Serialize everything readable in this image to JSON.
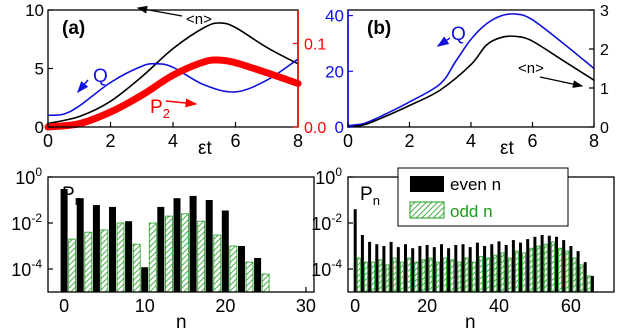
{
  "colors": {
    "black": "#000000",
    "blue": "#1010e0",
    "red": "#ff0000",
    "green": "#1a9a1a",
    "hatch_bg": "#ffffff"
  },
  "chart_data": [
    {
      "panel": "a",
      "type": "line",
      "panel_label": "(a)",
      "xlabel": "εt",
      "xlim": [
        0,
        8
      ],
      "x_ticks": [
        "0",
        "2",
        "4",
        "6",
        "8"
      ],
      "left_axis": {
        "ylim": [
          0,
          10
        ],
        "ticks": [
          "0",
          "5",
          "10"
        ]
      },
      "right_axis": {
        "ylim": [
          0,
          0.14
        ],
        "ticks": [
          "0.0",
          "0.1"
        ],
        "color": "#ff0000"
      },
      "annotations": {
        "n_mean": "<n>",
        "Q": "Q",
        "P2": "P",
        "P2_sub": "2"
      },
      "series": [
        {
          "key": "n_mean",
          "axis": "left",
          "color": "#000000",
          "x": [
            0,
            1,
            2,
            3,
            4,
            5,
            5.5,
            6,
            7,
            8
          ],
          "y": [
            0.3,
            0.9,
            2.2,
            4.3,
            6.7,
            8.5,
            8.9,
            8.5,
            6.8,
            5.4
          ]
        },
        {
          "key": "Q",
          "axis": "left",
          "color": "#1010e0",
          "x": [
            0,
            0.5,
            1,
            2,
            3,
            3.5,
            4,
            5,
            6,
            7,
            8
          ],
          "y": [
            1.0,
            1.1,
            1.8,
            3.8,
            5.2,
            5.4,
            5.1,
            3.6,
            3.0,
            4.0,
            5.8
          ]
        },
        {
          "key": "P2",
          "axis": "right",
          "color": "#ff0000",
          "thick": true,
          "x": [
            0,
            1,
            2,
            3,
            4,
            5,
            5.5,
            6,
            7,
            8
          ],
          "y": [
            0.0,
            0.004,
            0.018,
            0.038,
            0.062,
            0.078,
            0.08,
            0.077,
            0.065,
            0.052
          ]
        }
      ]
    },
    {
      "panel": "b",
      "type": "line",
      "panel_label": "(b)",
      "xlabel": "εt",
      "xlim": [
        0,
        8
      ],
      "x_ticks": [
        "0",
        "2",
        "4",
        "6",
        "8"
      ],
      "left_axis": {
        "ylim": [
          0,
          42
        ],
        "ticks": [
          "0",
          "20",
          "40"
        ],
        "color": "#1010e0"
      },
      "right_axis": {
        "ylim": [
          0,
          3
        ],
        "ticks": [
          "0",
          "1",
          "2",
          "3"
        ]
      },
      "annotations": {
        "Q": "Q",
        "n_mean": "<n>"
      },
      "series": [
        {
          "key": "Q",
          "axis": "left",
          "color": "#1010e0",
          "x": [
            0,
            0.5,
            1,
            2,
            3,
            3.5,
            4,
            4.5,
            5,
            5.5,
            6,
            7,
            8
          ],
          "y": [
            0.5,
            1.2,
            3.5,
            9.0,
            15.5,
            23.5,
            31.5,
            37.0,
            40.0,
            40.5,
            38.5,
            30.0,
            21.0
          ]
        },
        {
          "key": "n_mean",
          "axis": "right",
          "color": "#000000",
          "x": [
            0,
            0.5,
            1,
            2,
            3,
            4,
            4.5,
            5,
            5.5,
            6,
            7,
            8
          ],
          "y": [
            0.0,
            0.05,
            0.2,
            0.55,
            0.95,
            1.6,
            2.1,
            2.3,
            2.32,
            2.2,
            1.7,
            1.2
          ]
        }
      ]
    },
    {
      "panel": "c",
      "type": "bar",
      "ylabel": "P",
      "ylabel_sub": "n",
      "xlabel": "n",
      "yscale": "log",
      "ylim": [
        1e-05,
        1
      ],
      "y_ticks": [
        {
          "base": "10",
          "exp": "0"
        },
        {
          "base": "10",
          "exp": "-2"
        },
        {
          "base": "10",
          "exp": "-4"
        }
      ],
      "xlim": [
        -2,
        31
      ],
      "x_ticks": [
        "0",
        "10",
        "20",
        "30"
      ],
      "series": [
        {
          "name": "even n",
          "color": "#000000",
          "n": [
            0,
            2,
            4,
            6,
            8,
            10,
            12,
            14,
            16,
            18,
            20,
            22,
            24
          ],
          "values": [
            0.3,
            0.12,
            0.06,
            0.05,
            0.012,
            0.00012,
            0.05,
            0.12,
            0.15,
            0.1,
            0.035,
            0.001,
            0.0003
          ]
        },
        {
          "name": "odd n",
          "color": "#1a9a1a",
          "hatched": true,
          "n": [
            1,
            3,
            5,
            7,
            9,
            11,
            13,
            15,
            17,
            19,
            21,
            23,
            25
          ],
          "values": [
            0.002,
            0.004,
            0.005,
            0.01,
            0.0012,
            0.01,
            0.02,
            0.025,
            0.012,
            0.003,
            0.001,
            0.0002,
            6e-05
          ]
        }
      ]
    },
    {
      "panel": "d",
      "type": "bar",
      "ylabel": "P",
      "ylabel_sub": "n",
      "xlabel": "n",
      "yscale": "log",
      "ylim": [
        1e-05,
        1
      ],
      "y_ticks": [
        {
          "base": "10",
          "exp": "0"
        },
        {
          "base": "10",
          "exp": "-2"
        },
        {
          "base": "10",
          "exp": "-4"
        }
      ],
      "xlim": [
        -2,
        72
      ],
      "x_ticks": [
        "0",
        "20",
        "40",
        "60"
      ],
      "legend": {
        "position": "top-right",
        "entries": [
          "even n",
          "odd n"
        ]
      },
      "series": [
        {
          "name": "even n",
          "color": "#000000",
          "n": [
            0,
            2,
            4,
            6,
            8,
            10,
            12,
            14,
            16,
            18,
            20,
            22,
            24,
            26,
            28,
            30,
            32,
            34,
            36,
            38,
            40,
            42,
            44,
            46,
            48,
            50,
            52,
            54,
            56,
            58,
            60,
            62,
            64,
            66
          ],
          "values": [
            0.04,
            0.003,
            0.0015,
            0.0012,
            0.001,
            0.0015,
            0.0009,
            0.0012,
            0.0008,
            0.001,
            0.0011,
            0.0009,
            0.0012,
            0.0008,
            0.0011,
            0.0012,
            0.0009,
            0.0014,
            0.001,
            0.0012,
            0.0016,
            0.0011,
            0.0018,
            0.0014,
            0.002,
            0.0025,
            0.003,
            0.0028,
            0.0025,
            0.0018,
            0.001,
            0.0006,
            0.0002,
            5e-05
          ]
        },
        {
          "name": "odd n",
          "color": "#1a9a1a",
          "hatched": true,
          "n": [
            1,
            3,
            5,
            7,
            9,
            11,
            13,
            15,
            17,
            19,
            21,
            23,
            25,
            27,
            29,
            31,
            33,
            35,
            37,
            39,
            41,
            43,
            45,
            47,
            49,
            51,
            53,
            55,
            57,
            59,
            61,
            63,
            65
          ],
          "values": [
            0.0003,
            0.0002,
            0.0002,
            0.00025,
            0.00015,
            0.0003,
            0.0002,
            0.0003,
            0.0002,
            0.00025,
            0.0003,
            0.0002,
            0.0003,
            0.00025,
            0.0002,
            0.0003,
            0.0002,
            0.00035,
            0.0003,
            0.0004,
            0.0005,
            0.0003,
            0.0006,
            0.0005,
            0.0008,
            0.001,
            0.0012,
            0.0015,
            0.0008,
            0.0006,
            0.0003,
            0.00015,
            5e-05
          ]
        }
      ]
    }
  ]
}
